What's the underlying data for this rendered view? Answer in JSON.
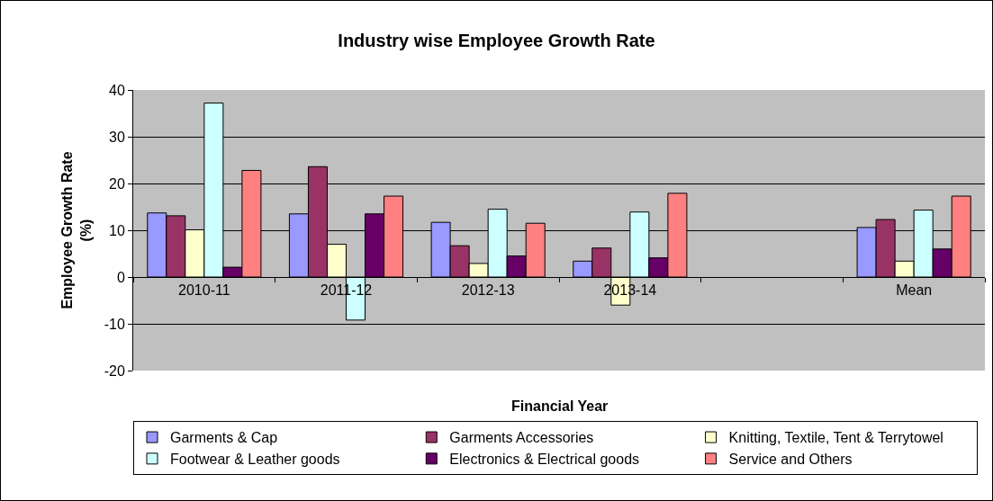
{
  "chart_data": {
    "type": "bar",
    "title": "Industry wise Employee Growth Rate",
    "xlabel": "Financial Year",
    "ylabel": "Employee Growth Rate (%)",
    "categories": [
      "2010-11",
      "2011-12",
      "2012-13",
      "2013-14",
      null,
      "Mean"
    ],
    "series": [
      {
        "name": "Garments & Cap",
        "color": "#9999ff",
        "values": [
          13.7,
          13.5,
          11.7,
          3.4,
          null,
          10.6
        ]
      },
      {
        "name": "Garments Accessories",
        "color": "#993366",
        "values": [
          13.1,
          23.6,
          6.7,
          6.2,
          null,
          12.3
        ]
      },
      {
        "name": "Knitting, Textile, Tent & Terrytowel",
        "color": "#ffffcc",
        "values": [
          10.1,
          7.0,
          2.9,
          -6.0,
          null,
          3.4
        ]
      },
      {
        "name": "Footwear & Leather goods",
        "color": "#ccffff",
        "values": [
          37.2,
          -9.2,
          14.5,
          13.9,
          null,
          14.3
        ]
      },
      {
        "name": "Electronics & Electrical goods",
        "color": "#660066",
        "values": [
          2.1,
          13.5,
          4.5,
          4.1,
          null,
          6.0
        ]
      },
      {
        "name": "Service and Others",
        "color": "#ff8080",
        "values": [
          22.8,
          17.3,
          11.5,
          17.9,
          null,
          17.3
        ]
      }
    ],
    "ylim": [
      -20,
      40
    ],
    "yticks": [
      -20,
      -10,
      0,
      10,
      20,
      30,
      40
    ],
    "grid": "y",
    "legend": "bottom"
  }
}
